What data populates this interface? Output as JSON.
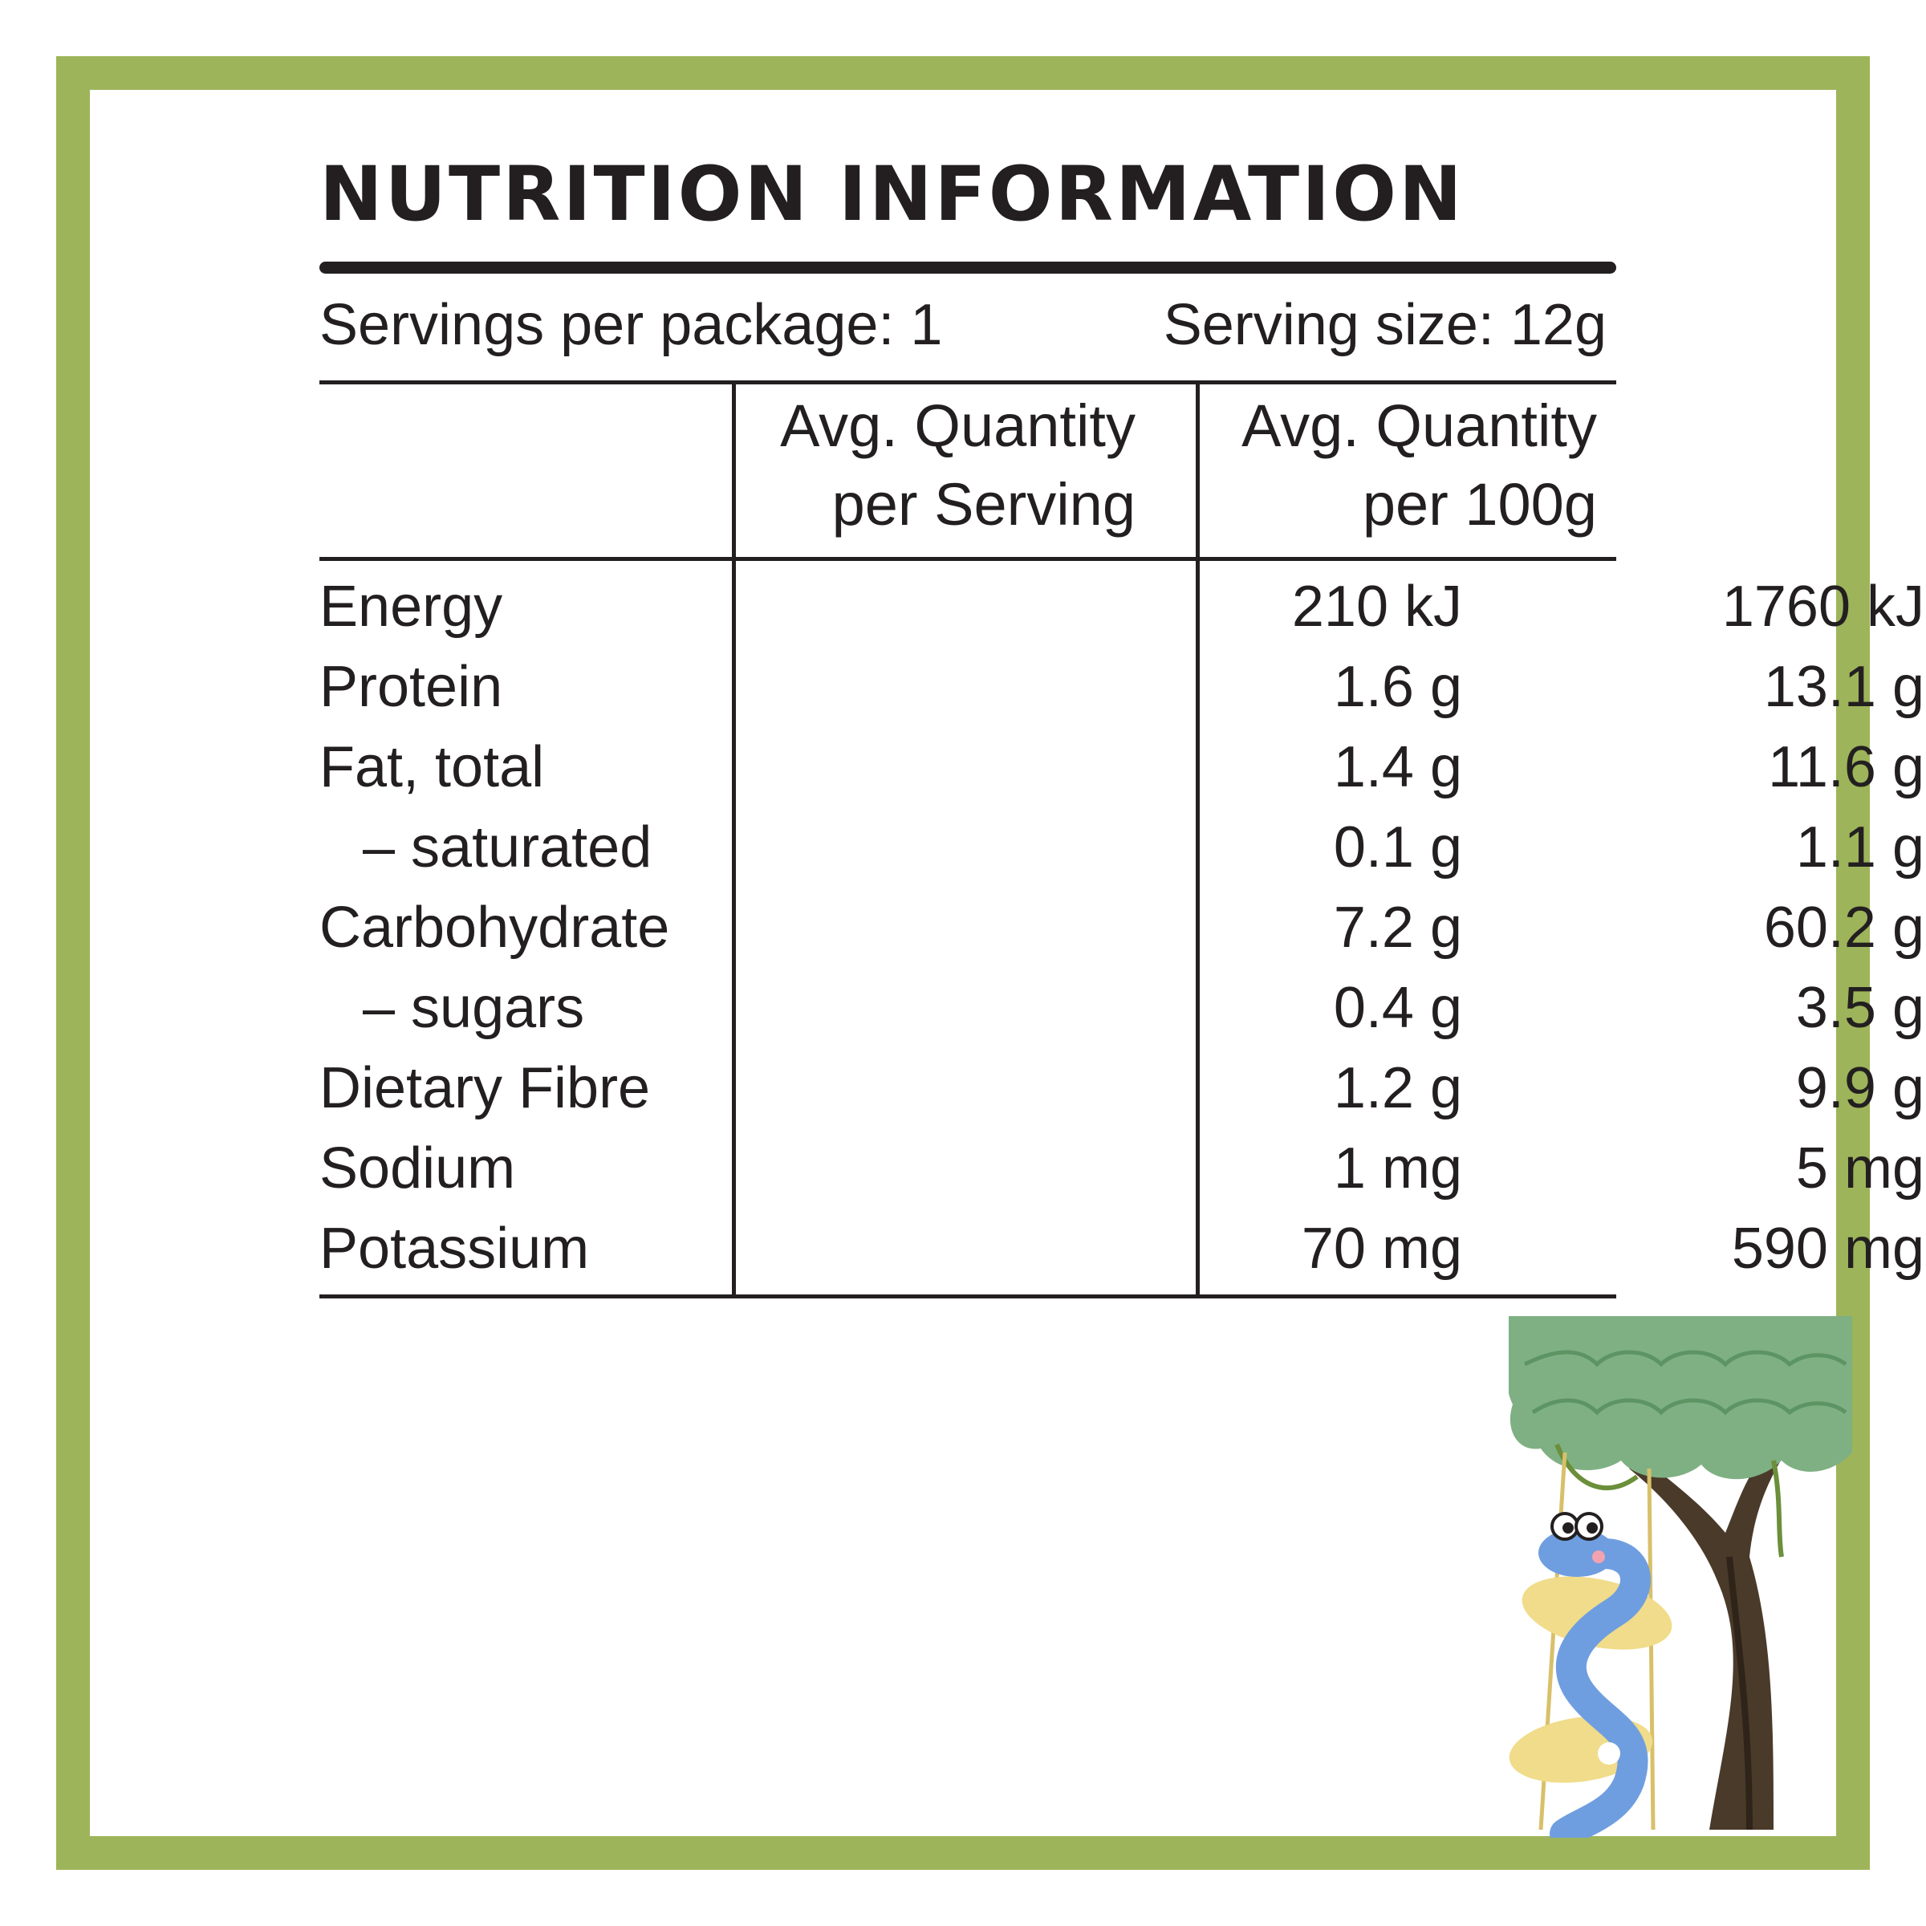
{
  "panel": {
    "title": "NUTRITION INFORMATION",
    "servings_per_package": "Servings per package: 1",
    "serving_size": "Serving size: 12g",
    "columns": {
      "per_serving_line1": "Avg. Quantity",
      "per_serving_line2": "per Serving",
      "per_100g_line1": "Avg. Quantity",
      "per_100g_line2": "per 100g"
    },
    "rows": [
      {
        "name": "Energy",
        "per_serving": "210 kJ",
        "per_100g": "1760 kJ"
      },
      {
        "name": "Protein",
        "per_serving": "1.6 g",
        "per_100g": "13.1 g"
      },
      {
        "name": "Fat, total",
        "per_serving": "1.4 g",
        "per_100g": "11.6 g"
      },
      {
        "name": "– saturated",
        "per_serving": "0.1 g",
        "per_100g": "1.1 g"
      },
      {
        "name": "Carbohydrate",
        "per_serving": "7.2 g",
        "per_100g": "60.2 g"
      },
      {
        "name": "– sugars",
        "per_serving": "0.4 g",
        "per_100g": "3.5 g"
      },
      {
        "name": "Dietary Fibre",
        "per_serving": "1.2 g",
        "per_100g": "9.9 g"
      },
      {
        "name": "Sodium",
        "per_serving": "1 mg",
        "per_100g": "5 mg"
      },
      {
        "name": "Potassium",
        "per_serving": "70 mg",
        "per_100g": "590 mg"
      }
    ]
  },
  "colors": {
    "frame": "#9db45a",
    "text": "#231f20",
    "foliage": "#7fb083",
    "snake": "#6f9ee0",
    "puff": "#f0dc8a",
    "trunk": "#4a3a2a"
  },
  "illustration": {
    "icon": "snake-on-tree-illustration"
  }
}
